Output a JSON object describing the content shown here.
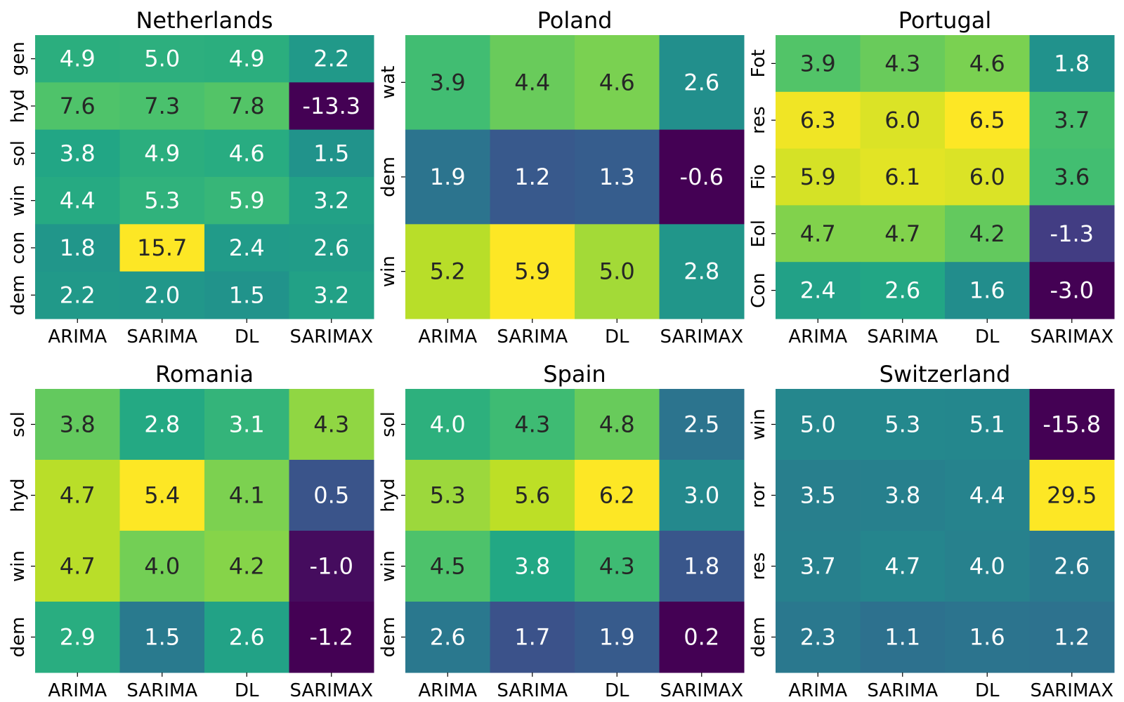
{
  "colormap": "viridis",
  "chart_data": [
    {
      "type": "heatmap",
      "title": "Netherlands",
      "x_labels": [
        "ARIMA",
        "SARIMA",
        "DL",
        "SARIMAX"
      ],
      "y_labels": [
        "gen",
        "hyd",
        "sol",
        "win",
        "con",
        "dem"
      ],
      "values": [
        [
          4.9,
          5.0,
          4.9,
          2.2
        ],
        [
          7.6,
          7.3,
          7.8,
          -13.3
        ],
        [
          3.8,
          4.9,
          4.6,
          1.5
        ],
        [
          4.4,
          5.3,
          5.9,
          3.2
        ],
        [
          1.8,
          15.7,
          2.4,
          2.6
        ],
        [
          2.2,
          2.0,
          1.5,
          3.2
        ]
      ],
      "value_labels": [
        [
          "4.9",
          "5.0",
          "4.9",
          "2.2"
        ],
        [
          "7.6",
          "7.3",
          "7.8",
          "-13.3"
        ],
        [
          "3.8",
          "4.9",
          "4.6",
          "1.5"
        ],
        [
          "4.4",
          "5.3",
          "5.9",
          "3.2"
        ],
        [
          "1.8",
          "15.7",
          "2.4",
          "2.6"
        ],
        [
          "2.2",
          "2.0",
          "1.5",
          "3.2"
        ]
      ]
    },
    {
      "type": "heatmap",
      "title": "Poland",
      "x_labels": [
        "ARIMA",
        "SARIMA",
        "DL",
        "SARIMAX"
      ],
      "y_labels": [
        "wat",
        "dem",
        "win"
      ],
      "values": [
        [
          3.9,
          4.4,
          4.6,
          2.6
        ],
        [
          1.9,
          1.2,
          1.3,
          -0.6
        ],
        [
          5.2,
          5.9,
          5.0,
          2.8
        ]
      ],
      "value_labels": [
        [
          "3.9",
          "4.4",
          "4.6",
          "2.6"
        ],
        [
          "1.9",
          "1.2",
          "1.3",
          "-0.6"
        ],
        [
          "5.2",
          "5.9",
          "5.0",
          "2.8"
        ]
      ]
    },
    {
      "type": "heatmap",
      "title": "Portugal",
      "x_labels": [
        "ARIMA",
        "SARIMA",
        "DL",
        "SARIMAX"
      ],
      "y_labels": [
        "Fot",
        "res",
        "Fio",
        "Eol",
        "Con"
      ],
      "values": [
        [
          3.9,
          4.3,
          4.6,
          1.8
        ],
        [
          6.3,
          6.0,
          6.5,
          3.7
        ],
        [
          5.9,
          6.1,
          6.0,
          3.6
        ],
        [
          4.7,
          4.7,
          4.2,
          -1.3
        ],
        [
          2.4,
          2.6,
          1.6,
          -3.0
        ]
      ],
      "value_labels": [
        [
          "3.9",
          "4.3",
          "4.6",
          "1.8"
        ],
        [
          "6.3",
          "6.0",
          "6.5",
          "3.7"
        ],
        [
          "5.9",
          "6.1",
          "6.0",
          "3.6"
        ],
        [
          "4.7",
          "4.7",
          "4.2",
          "-1.3"
        ],
        [
          "2.4",
          "2.6",
          "1.6",
          "-3.0"
        ]
      ]
    },
    {
      "type": "heatmap",
      "title": "Romania",
      "x_labels": [
        "ARIMA",
        "SARIMA",
        "DL",
        "SARIMAX"
      ],
      "y_labels": [
        "sol",
        "hyd",
        "win",
        "dem"
      ],
      "values": [
        [
          3.8,
          2.8,
          3.1,
          4.3
        ],
        [
          4.7,
          5.4,
          4.1,
          0.5
        ],
        [
          4.7,
          4.0,
          4.2,
          -1.0
        ],
        [
          2.9,
          1.5,
          2.6,
          -1.2
        ]
      ],
      "value_labels": [
        [
          "3.8",
          "2.8",
          "3.1",
          "4.3"
        ],
        [
          "4.7",
          "5.4",
          "4.1",
          "0.5"
        ],
        [
          "4.7",
          "4.0",
          "4.2",
          "-1.0"
        ],
        [
          "2.9",
          "1.5",
          "2.6",
          "-1.2"
        ]
      ]
    },
    {
      "type": "heatmap",
      "title": "Spain",
      "x_labels": [
        "ARIMA",
        "SARIMA",
        "DL",
        "SARIMAX"
      ],
      "y_labels": [
        "sol",
        "hyd",
        "win",
        "dem"
      ],
      "values": [
        [
          4.0,
          4.3,
          4.8,
          2.5
        ],
        [
          5.3,
          5.6,
          6.2,
          3.0
        ],
        [
          4.5,
          3.8,
          4.3,
          1.8
        ],
        [
          2.6,
          1.7,
          1.9,
          0.2
        ]
      ],
      "value_labels": [
        [
          "4.0",
          "4.3",
          "4.8",
          "2.5"
        ],
        [
          "5.3",
          "5.6",
          "6.2",
          "3.0"
        ],
        [
          "4.5",
          "3.8",
          "4.3",
          "1.8"
        ],
        [
          "2.6",
          "1.7",
          "1.9",
          "0.2"
        ]
      ]
    },
    {
      "type": "heatmap",
      "title": "Switzerland",
      "x_labels": [
        "ARIMA",
        "SARIMA",
        "DL",
        "SARIMAX"
      ],
      "y_labels": [
        "win",
        "ror",
        "res",
        "dem"
      ],
      "values": [
        [
          5.0,
          5.3,
          5.1,
          -15.8
        ],
        [
          3.5,
          3.8,
          4.4,
          29.5
        ],
        [
          3.7,
          4.7,
          4.0,
          2.6
        ],
        [
          2.3,
          1.1,
          1.6,
          1.2
        ]
      ],
      "value_labels": [
        [
          "5.0",
          "5.3",
          "5.1",
          "-15.8"
        ],
        [
          "3.5",
          "3.8",
          "4.4",
          "29.5"
        ],
        [
          "3.7",
          "4.7",
          "4.0",
          "2.6"
        ],
        [
          "2.3",
          "1.1",
          "1.6",
          "1.2"
        ]
      ]
    }
  ]
}
